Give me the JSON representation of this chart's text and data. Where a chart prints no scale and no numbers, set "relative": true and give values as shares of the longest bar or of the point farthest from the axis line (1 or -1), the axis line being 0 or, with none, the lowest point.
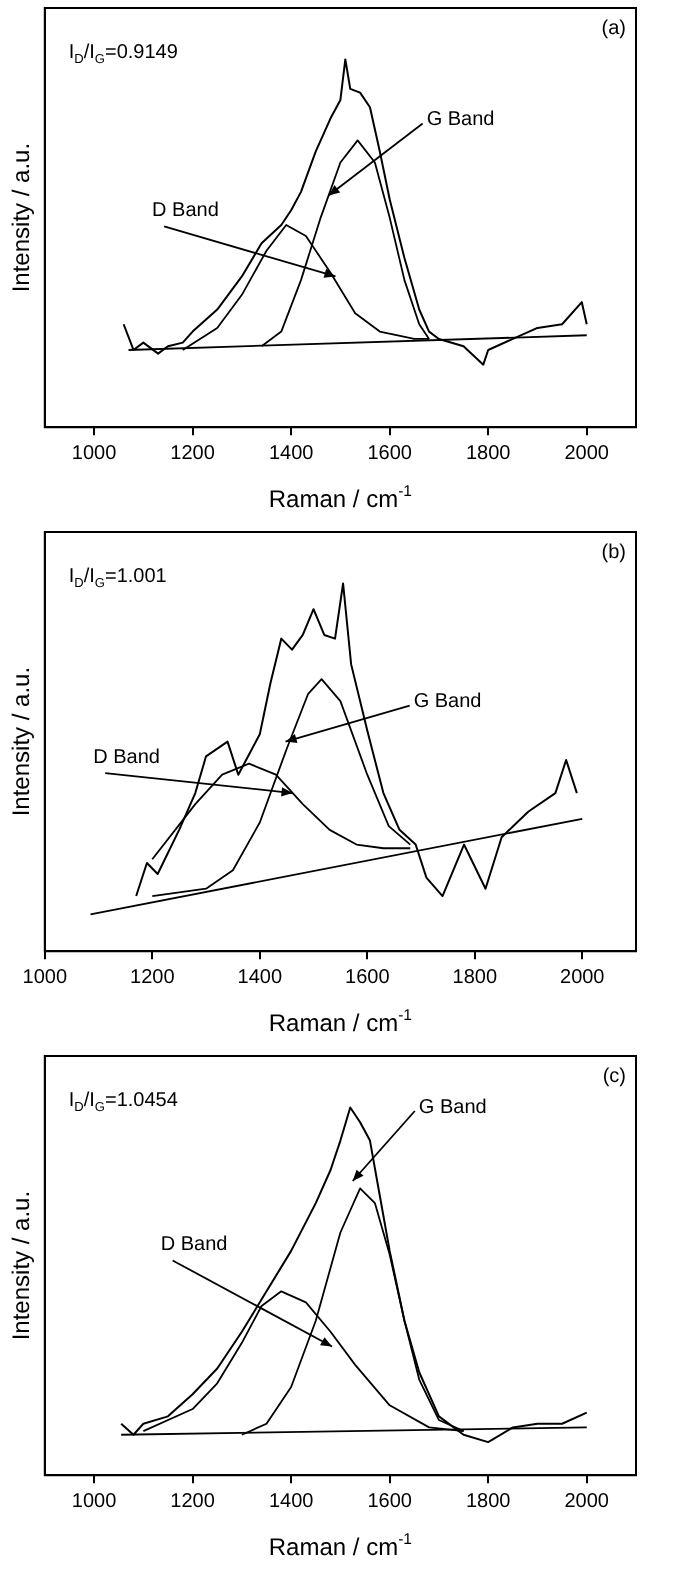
{
  "chart_data": [
    {
      "type": "line",
      "title": "(a)",
      "xlabel": "Raman / cm$^{-1}$",
      "ylabel": "Intensity / a.u.",
      "xlim": [
        900,
        2100
      ],
      "xticks": [
        1000,
        1200,
        1400,
        1600,
        1800,
        2000
      ],
      "relative": true,
      "annotations": [
        "I$_{D}$/I$_{G}$=0.9149",
        {
          "text": "D Band",
          "x": 1490,
          "y": 0.41
        },
        {
          "text": "G Band",
          "x": 1476,
          "y": 0.63
        }
      ],
      "series": [
        {
          "color": "#000000",
          "x": [
            1060,
            1080,
            1100,
            1130,
            1150,
            1180,
            1200,
            1250,
            1300,
            1340,
            1380,
            1400,
            1420,
            1450,
            1480,
            1500,
            1510,
            1520,
            1540,
            1560,
            1580,
            1600,
            1630,
            1660,
            1680,
            1700,
            1750,
            1790,
            1800,
            1850,
            1900,
            1950,
            1990,
            2000
          ],
          "values": [
            0.28,
            0.21,
            0.23,
            0.2,
            0.22,
            0.23,
            0.26,
            0.32,
            0.41,
            0.5,
            0.55,
            0.59,
            0.64,
            0.75,
            0.84,
            0.89,
            1,
            0.92,
            0.91,
            0.87,
            0.75,
            0.62,
            0.46,
            0.32,
            0.26,
            0.24,
            0.22,
            0.17,
            0.21,
            0.24,
            0.27,
            0.28,
            0.34,
            0.28
          ]
        },
        {
          "color": "#000000",
          "x": [
            1180,
            1250,
            1300,
            1350,
            1390,
            1430,
            1480,
            1530,
            1580,
            1650,
            1680
          ],
          "values": [
            0.21,
            0.27,
            0.36,
            0.48,
            0.55,
            0.52,
            0.42,
            0.31,
            0.26,
            0.24,
            0.24
          ]
        },
        {
          "color": "#000000",
          "x": [
            1340,
            1380,
            1420,
            1460,
            1500,
            1535,
            1570,
            1600,
            1630,
            1660,
            1680
          ],
          "values": [
            0.22,
            0.26,
            0.4,
            0.57,
            0.72,
            0.78,
            0.72,
            0.57,
            0.4,
            0.28,
            0.24
          ]
        },
        {
          "color": "#000000",
          "x": [
            1070,
            2000
          ],
          "values": [
            0.21,
            0.25
          ]
        }
      ]
    },
    {
      "type": "line",
      "title": "(b)",
      "xlabel": "Raman / cm$^{-1}$",
      "ylabel": "Intensity / a.u.",
      "xlim": [
        1000,
        2100
      ],
      "xticks": [
        1000,
        1200,
        1400,
        1600,
        1800,
        2000
      ],
      "relative": true,
      "annotations": [
        "I$_{D}$/I$_{G}$=1.001",
        {
          "text": "D Band",
          "x": 1461,
          "y": 0.43
        },
        {
          "text": "G Band",
          "x": 1448,
          "y": 0.57
        }
      ],
      "series": [
        {
          "color": "#000000",
          "x": [
            1170,
            1190,
            1210,
            1250,
            1280,
            1300,
            1340,
            1360,
            1400,
            1420,
            1440,
            1460,
            1480,
            1500,
            1520,
            1540,
            1555,
            1570,
            1600,
            1630,
            1660,
            1690,
            1710,
            1740,
            1780,
            1820,
            1850,
            1900,
            1950,
            1970,
            1990
          ],
          "values": [
            0.15,
            0.24,
            0.21,
            0.33,
            0.43,
            0.53,
            0.57,
            0.48,
            0.59,
            0.73,
            0.85,
            0.82,
            0.86,
            0.93,
            0.86,
            0.85,
            1,
            0.78,
            0.6,
            0.43,
            0.33,
            0.29,
            0.2,
            0.15,
            0.29,
            0.17,
            0.31,
            0.38,
            0.43,
            0.52,
            0.43
          ]
        },
        {
          "color": "#000000",
          "x": [
            1200,
            1280,
            1330,
            1380,
            1430,
            1480,
            1530,
            1580,
            1630,
            1680
          ],
          "values": [
            0.25,
            0.4,
            0.48,
            0.51,
            0.48,
            0.4,
            0.33,
            0.29,
            0.28,
            0.28
          ]
        },
        {
          "color": "#000000",
          "x": [
            1200,
            1300,
            1350,
            1400,
            1450,
            1490,
            1515,
            1550,
            1600,
            1640,
            1680
          ],
          "values": [
            0.15,
            0.17,
            0.22,
            0.35,
            0.55,
            0.7,
            0.74,
            0.68,
            0.48,
            0.34,
            0.29
          ]
        },
        {
          "color": "#000000",
          "x": [
            1085,
            2000
          ],
          "values": [
            0.1,
            0.36
          ]
        }
      ]
    },
    {
      "type": "line",
      "title": "(c)",
      "xlabel": "Raman / cm$^{-1}$",
      "ylabel": "Intensity / a.u.",
      "xlim": [
        900,
        2100
      ],
      "xticks": [
        1000,
        1200,
        1400,
        1600,
        1800,
        2000
      ],
      "relative": true,
      "annotations": [
        "I$_{D}$/I$_{G}$=1.0454",
        {
          "text": "D Band",
          "x": 1483,
          "y": 0.35
        },
        {
          "text": "G Band",
          "x": 1525,
          "y": 0.8
        }
      ],
      "series": [
        {
          "color": "#000000",
          "x": [
            1055,
            1080,
            1100,
            1150,
            1200,
            1250,
            1300,
            1350,
            1400,
            1450,
            1480,
            1500,
            1520,
            1540,
            1560,
            1580,
            1600,
            1630,
            1660,
            1700,
            1750,
            1800,
            1850,
            1900,
            1950,
            2000
          ],
          "values": [
            0.14,
            0.11,
            0.14,
            0.16,
            0.22,
            0.29,
            0.39,
            0.5,
            0.61,
            0.74,
            0.83,
            0.91,
            1,
            0.96,
            0.91,
            0.76,
            0.61,
            0.42,
            0.28,
            0.16,
            0.11,
            0.09,
            0.13,
            0.14,
            0.14,
            0.17
          ]
        },
        {
          "color": "#000000",
          "x": [
            1100,
            1200,
            1250,
            1300,
            1340,
            1380,
            1430,
            1480,
            1530,
            1600,
            1680,
            1750
          ],
          "values": [
            0.12,
            0.18,
            0.25,
            0.36,
            0.46,
            0.5,
            0.47,
            0.39,
            0.3,
            0.19,
            0.13,
            0.12
          ]
        },
        {
          "color": "#000000",
          "x": [
            1300,
            1350,
            1400,
            1450,
            1500,
            1540,
            1570,
            1600,
            1630,
            1660,
            1700,
            1750
          ],
          "values": [
            0.11,
            0.14,
            0.24,
            0.42,
            0.66,
            0.78,
            0.74,
            0.6,
            0.42,
            0.26,
            0.15,
            0.12
          ]
        },
        {
          "color": "#000000",
          "x": [
            1055,
            2000
          ],
          "values": [
            0.11,
            0.13
          ]
        }
      ]
    }
  ]
}
